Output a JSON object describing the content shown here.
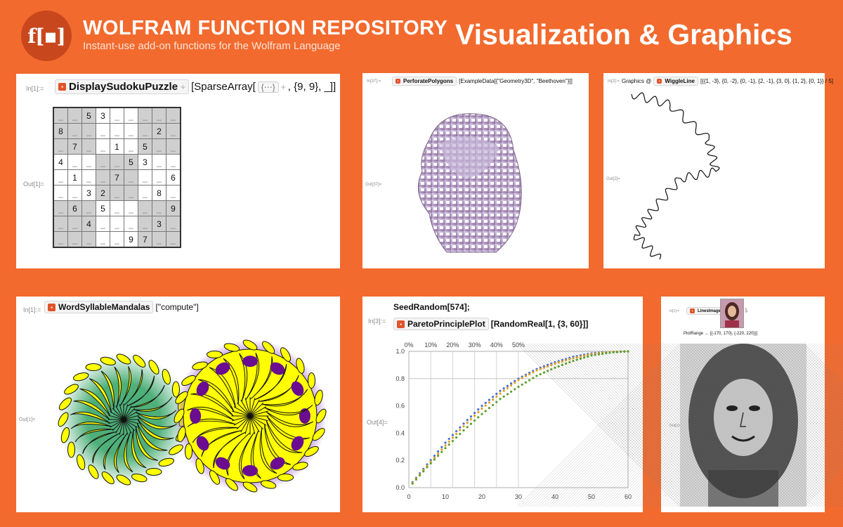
{
  "header": {
    "logo_text": "f[▪]",
    "brand_title": "WOLFRAM FUNCTION REPOSITORY",
    "brand_subtitle": "Instant-use add-on functions for the Wolfram Language",
    "section_title": "Visualization & Graphics"
  },
  "colors": {
    "background": "#f26a2e",
    "panel": "#ffffff",
    "function_icon": "#e0532a",
    "mandala_yellow": "#ffff00",
    "mandala_purple": "#6a0d91",
    "mandala_green": "#3aa66a"
  },
  "panels": {
    "sudoku": {
      "in_label": "In[1]:=",
      "out_label": "Out[1]=",
      "function": "DisplaySudokuPuzzle",
      "code_open": "[SparseArray[",
      "code_ellipsis": "{⋯}",
      "code_rest": ", {9, 9}, _]]",
      "grid": [
        [
          "_",
          "_",
          "5",
          "3",
          "_",
          "_",
          "_",
          "_",
          "_"
        ],
        [
          "8",
          "_",
          "_",
          "_",
          "_",
          "_",
          "_",
          "2",
          "_"
        ],
        [
          "_",
          "7",
          "_",
          "_",
          "1",
          "_",
          "5",
          "_",
          "_"
        ],
        [
          "4",
          "_",
          "_",
          "_",
          "_",
          "5",
          "3",
          "_",
          "_"
        ],
        [
          "_",
          "1",
          "_",
          "_",
          "7",
          "_",
          "_",
          "_",
          "6"
        ],
        [
          "_",
          "_",
          "3",
          "2",
          "_",
          "_",
          "_",
          "8",
          "_"
        ],
        [
          "_",
          "6",
          "_",
          "5",
          "_",
          "_",
          "_",
          "_",
          "9"
        ],
        [
          "_",
          "_",
          "4",
          "_",
          "_",
          "_",
          "_",
          "3",
          "_"
        ],
        [
          "_",
          "_",
          "_",
          "_",
          "_",
          "9",
          "7",
          "_",
          "_"
        ]
      ]
    },
    "perforate": {
      "in_label": "In[37]:=",
      "out_label": "Out[37]=",
      "function": "PerforatePolygons",
      "code_rest": "[ExampleData[{\"Geometry3D\", \"Beethoven\"}]]"
    },
    "wiggle": {
      "in_label": "In[2]:=",
      "out_label": "Out[2]=",
      "code_prefix": "Graphics @",
      "function": "WiggleLine",
      "code_rest": "[{{1, -3}, {0, -2}, {0, -1}, {2, -1}, {3, 0}, {1, 2}, {0, 1}} / 5]"
    },
    "mandala": {
      "in_label": "In[1]:=",
      "out_label": "Out[1]=",
      "function": "WordSyllableMandalas",
      "code_rest": "[\"compute\"]"
    },
    "pareto": {
      "in_label": "In[3]:=",
      "out_label": "Out[4]=",
      "line1": "SeedRandom[574];",
      "function": "ParetoPrinciplePlot",
      "code_rest": "[RandomReal[1, {3, 60}]]"
    },
    "lines": {
      "in_label": "In[1]:=",
      "out_label": "Out[1]=",
      "function": "LinesImage",
      "code_rest": "[",
      "code_close": "],",
      "options": "PlotRange → {{-170, 170}, {-220, 220}}]"
    }
  },
  "chart_data": {
    "type": "scatter",
    "x_ticks": [
      "0",
      "10",
      "20",
      "30",
      "40",
      "50",
      "60"
    ],
    "y_ticks": [
      "0.0",
      "0.2",
      "0.4",
      "0.6",
      "0.8",
      "1.0"
    ],
    "top_ticks": [
      "0%",
      "10%",
      "20%",
      "30%",
      "40%",
      "50%"
    ],
    "xlim": [
      0,
      60
    ],
    "ylim": [
      0,
      1
    ],
    "reference_line_y": 0.8,
    "series": [
      {
        "color": "#4a6fd6",
        "points": [
          [
            1,
            0.04
          ],
          [
            5,
            0.17
          ],
          [
            10,
            0.33
          ],
          [
            15,
            0.47
          ],
          [
            20,
            0.6
          ],
          [
            25,
            0.71
          ],
          [
            30,
            0.8
          ],
          [
            35,
            0.87
          ],
          [
            40,
            0.92
          ],
          [
            45,
            0.96
          ],
          [
            50,
            0.985
          ],
          [
            55,
            0.995
          ],
          [
            60,
            1.0
          ]
        ]
      },
      {
        "color": "#e0a020",
        "points": [
          [
            1,
            0.035
          ],
          [
            5,
            0.16
          ],
          [
            10,
            0.31
          ],
          [
            15,
            0.45
          ],
          [
            20,
            0.58
          ],
          [
            25,
            0.69
          ],
          [
            30,
            0.79
          ],
          [
            35,
            0.86
          ],
          [
            40,
            0.91
          ],
          [
            45,
            0.95
          ],
          [
            50,
            0.98
          ],
          [
            55,
            0.995
          ],
          [
            60,
            1.0
          ]
        ]
      },
      {
        "color": "#5aa02c",
        "points": [
          [
            1,
            0.03
          ],
          [
            5,
            0.15
          ],
          [
            10,
            0.29
          ],
          [
            15,
            0.42
          ],
          [
            20,
            0.54
          ],
          [
            25,
            0.65
          ],
          [
            30,
            0.74
          ],
          [
            35,
            0.82
          ],
          [
            40,
            0.88
          ],
          [
            45,
            0.93
          ],
          [
            50,
            0.97
          ],
          [
            55,
            0.99
          ],
          [
            60,
            1.0
          ]
        ]
      }
    ]
  }
}
